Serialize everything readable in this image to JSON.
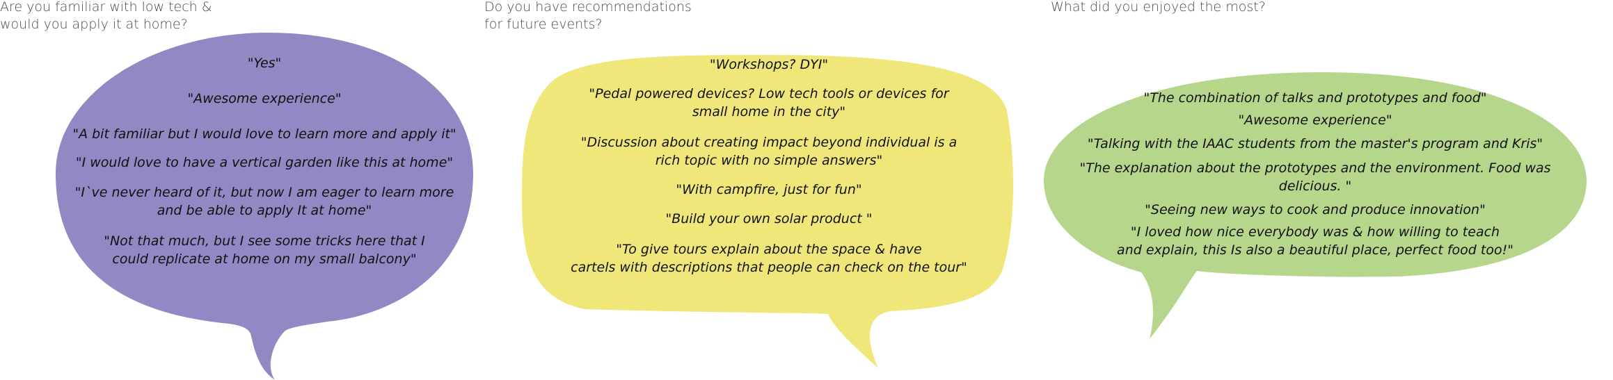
{
  "colors": {
    "purple_bubble": "#9189c3",
    "yellow_bubble": "#efe77a",
    "green_bubble": "#b6d68c",
    "question_text": "#4a4a4a",
    "quote_text": "#111111"
  },
  "panels": [
    {
      "question": "Are you familiar with low tech &\nwould you apply it at home?",
      "quotes": [
        "\"Yes\"",
        "\"Awesome experience\"",
        "\"A bit familiar but I would love to learn more and apply it\"",
        "\"I would love to have a vertical garden like this at home\"",
        "\"I`ve never heard of it, but now I am eager to learn more\nand be able to apply It at home\"",
        "\"Not that much, but I see some tricks here that I\ncould replicate at home on my small balcony\""
      ]
    },
    {
      "question": "Do you have recommendations\nfor future events?",
      "quotes": [
        "\"Workshops? DYI\"",
        "\"Pedal powered devices? Low tech tools or devices for\nsmall home in the city\"",
        "\"Discussion about creating impact beyond individual is a\nrich topic with no simple answers\"",
        "\"With campfire, just for fun\"",
        "\"Build your own solar product \"",
        "\"To give tours explain about the space & have\ncartels with descriptions that people can check on the tour\""
      ]
    },
    {
      "question": "What did you enjoyed the most?",
      "quotes": [
        "\"The combination of talks and prototypes and food\"",
        "\"Awesome experience\"",
        "\"Talking with the IAAC students from the master's program and Kris\"",
        "\"The explanation about the prototypes and the environment. Food was delicious. \"",
        "\"Seeing new ways to cook and produce innovation\"",
        "\"I loved how nice everybody was & how willing to teach\nand explain, this Is also a beautiful place, perfect food too!\""
      ]
    }
  ]
}
